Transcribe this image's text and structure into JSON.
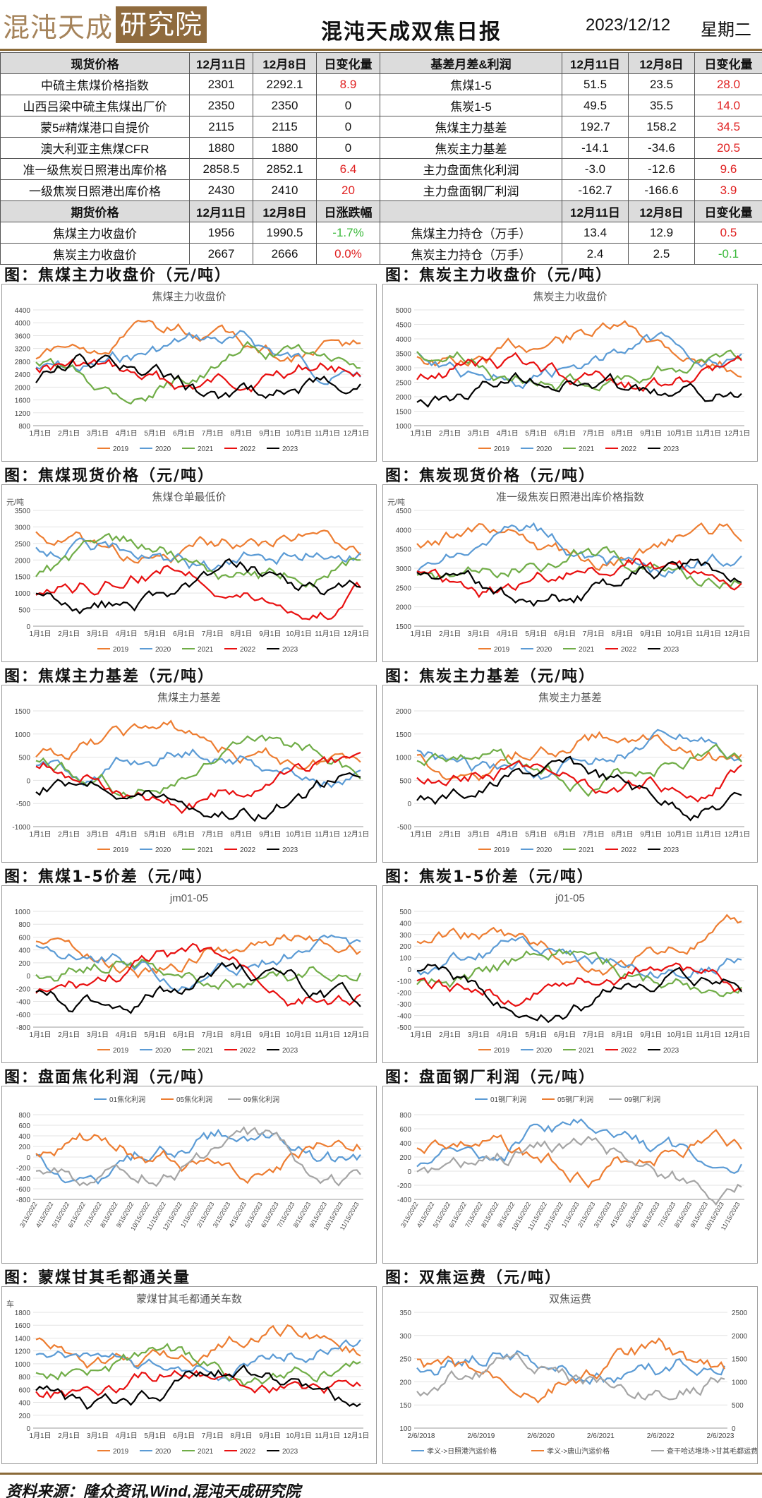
{
  "header": {
    "title": "混沌天成双焦日报",
    "date": "2023/12/12",
    "weekday": "星期二",
    "logo_text": "混沌天成",
    "logo_box": "研究院"
  },
  "table": {
    "head1": [
      "现货价格",
      "12月11日",
      "12月8日",
      "日变化量",
      "基差月差&利润",
      "12月11日",
      "12月8日",
      "日变化量"
    ],
    "rows1": [
      [
        "中硫主焦煤价格指数",
        "2301",
        "2292.1",
        "8.9",
        "焦煤1-5",
        "51.5",
        "23.5",
        "28.0"
      ],
      [
        "山西吕梁中硫主焦煤出厂价",
        "2350",
        "2350",
        "0",
        "焦炭1-5",
        "49.5",
        "35.5",
        "14.0"
      ],
      [
        "蒙5#精煤港口自提价",
        "2115",
        "2115",
        "0",
        "焦煤主力基差",
        "192.7",
        "158.2",
        "34.5"
      ],
      [
        "澳大利亚主焦煤CFR",
        "1880",
        "1880",
        "0",
        "焦炭主力基差",
        "-14.1",
        "-34.6",
        "20.5"
      ],
      [
        "准一级焦炭日照港出库价格",
        "2858.5",
        "2852.1",
        "6.4",
        "主力盘面焦化利润",
        "-3.0",
        "-12.6",
        "9.6"
      ],
      [
        "一级焦炭日照港出库价格",
        "2430",
        "2410",
        "20",
        "主力盘面钢厂利润",
        "-162.7",
        "-166.6",
        "3.9"
      ]
    ],
    "head2": [
      "期货价格",
      "12月11日",
      "12月8日",
      "日涨跌幅",
      "",
      "12月11日",
      "12月8日",
      "日变化量"
    ],
    "rows2": [
      [
        "焦煤主力收盘价",
        "1956",
        "1990.5",
        "-1.7%",
        "焦煤主力持仓（万手）",
        "13.4",
        "12.9",
        "0.5"
      ],
      [
        "焦炭主力收盘价",
        "2667",
        "2666",
        "0.0%",
        "焦炭主力持仓（万手）",
        "2.4",
        "2.5",
        "-0.1"
      ]
    ]
  },
  "colors": {
    "2019": "#ed7d31",
    "2020": "#5b9bd5",
    "2021": "#70ad47",
    "2022": "#e81010",
    "2023": "#000000"
  },
  "months": [
    "1月1日",
    "2月1日",
    "3月1日",
    "4月1日",
    "5月1日",
    "6月1日",
    "7月1日",
    "8月1日",
    "9月1日",
    "10月1日",
    "11月1日",
    "12月1日"
  ],
  "sections": [
    {
      "title": "图：焦煤主力收盘价（元/吨）",
      "chart_title": "焦煤主力收盘价",
      "unit": "",
      "yticks": [
        "4400",
        "4000",
        "3600",
        "3200",
        "2800",
        "2400",
        "2000",
        "1600",
        "1200",
        "800"
      ]
    },
    {
      "title": "图：焦炭主力收盘价（元/吨）",
      "chart_title": "焦炭主力收盘价",
      "unit": "",
      "yticks": [
        "5000",
        "4500",
        "4000",
        "3500",
        "3000",
        "2500",
        "2000",
        "1500",
        "1000"
      ]
    },
    {
      "title": "图：焦煤现货价格（元/吨）",
      "chart_title": "焦煤仓单最低价",
      "unit": "元/吨",
      "yticks": [
        "3500",
        "3000",
        "2500",
        "2000",
        "1500",
        "1000",
        "500",
        "0"
      ]
    },
    {
      "title": "图：焦炭现货价格（元/吨）",
      "chart_title": "准一级焦炭日照港出库价格指数",
      "unit": "元/吨",
      "yticks": [
        "4500",
        "4000",
        "3500",
        "3000",
        "2500",
        "2000",
        "1500"
      ]
    },
    {
      "title": "图：焦煤主力基差（元/吨）",
      "chart_title": "焦煤主力基差",
      "unit": "",
      "yticks": [
        "1500",
        "1000",
        "500",
        "0",
        "-500",
        "-1000"
      ]
    },
    {
      "title": "图：焦炭主力基差（元/吨）",
      "chart_title": "焦炭主力基差",
      "unit": "",
      "yticks": [
        "2000",
        "1500",
        "1000",
        "500",
        "0",
        "-500"
      ]
    },
    {
      "title": "图：焦煤1-5价差（元/吨）",
      "chart_title": "jm01-05",
      "unit": "",
      "yticks": [
        "1000",
        "800",
        "600",
        "400",
        "200",
        "0",
        "-200",
        "-400",
        "-600",
        "-800"
      ]
    },
    {
      "title": "图：焦炭1-5价差（元/吨）",
      "chart_title": "j01-05",
      "unit": "",
      "yticks": [
        "500",
        "400",
        "300",
        "200",
        "100",
        "0",
        "-100",
        "-200",
        "-300",
        "-400",
        "-500"
      ]
    },
    {
      "title": "图：盘面焦化利润（元/吨）",
      "chart_title": "",
      "unit": "",
      "yticks": [
        "800",
        "600",
        "400",
        "200",
        "0",
        "-200",
        "-400",
        "-600",
        "-800"
      ],
      "legend": [
        "01焦化利润",
        "05焦化利润",
        "09焦化利润"
      ],
      "dates": [
        "3/15/2022",
        "4/15/2022",
        "5/15/2022",
        "6/15/2022",
        "7/15/2022",
        "8/15/2022",
        "9/15/2022",
        "10/15/2022",
        "11/15/2022",
        "12/15/2022",
        "1/15/2023",
        "2/15/2023",
        "3/15/2023",
        "4/15/2023",
        "5/15/2023",
        "6/15/2023",
        "7/15/2023",
        "8/15/2023",
        "9/15/2023",
        "10/15/2023",
        "11/15/2023"
      ]
    },
    {
      "title": "图：盘面钢厂利润（元/吨）",
      "chart_title": "",
      "unit": "",
      "yticks": [
        "800",
        "600",
        "400",
        "200",
        "0",
        "-200",
        "-400"
      ],
      "legend": [
        "01钢厂利润",
        "05钢厂利润",
        "09钢厂利润"
      ],
      "dates": [
        "3/15/2022",
        "4/15/2022",
        "5/15/2022",
        "6/15/2022",
        "7/15/2022",
        "8/15/2022",
        "9/15/2022",
        "10/15/2022",
        "11/15/2022",
        "12/15/2022",
        "1/15/2023",
        "2/15/2023",
        "3/15/2023",
        "4/15/2023",
        "5/15/2023",
        "6/15/2023",
        "7/15/2023",
        "8/15/2023",
        "9/15/2023",
        "10/15/2023",
        "11/15/2023"
      ]
    },
    {
      "title": "图：蒙煤甘其毛都通关量",
      "chart_title": "蒙煤甘其毛都通关车数",
      "unit": "车",
      "yticks": [
        "1800",
        "1600",
        "1400",
        "1200",
        "1000",
        "800",
        "600",
        "400",
        "200",
        "0"
      ]
    },
    {
      "title": "图：双焦运费（元/吨）",
      "chart_title": "双焦运费",
      "unit": "",
      "yticks": [
        "350",
        "300",
        "250",
        "200",
        "150",
        "100"
      ],
      "yticks_r": [
        "2500",
        "2000",
        "1500",
        "1000",
        "500",
        "0"
      ],
      "xticks": [
        "2/6/2018",
        "2/6/2019",
        "2/6/2020",
        "2/6/2021",
        "2/6/2022",
        "2/6/2023"
      ],
      "legend": [
        "孝义->日照港汽运价格",
        "孝义->唐山汽运价格",
        "查干哈达堆场->甘其毛都运费"
      ]
    }
  ],
  "footer": "资料来源：隆众资讯,Wind,混沌天成研究院"
}
